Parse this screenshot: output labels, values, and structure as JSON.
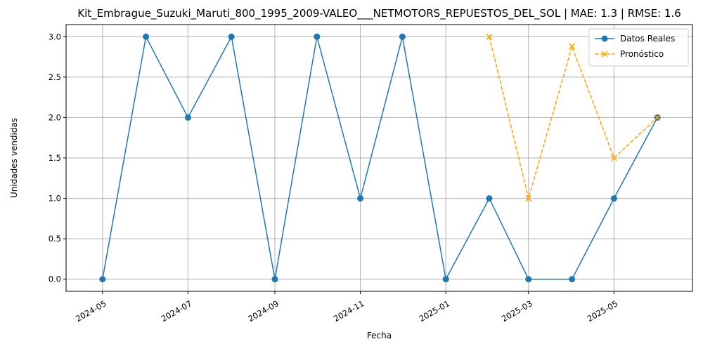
{
  "chart_data": {
    "type": "line",
    "title": "Kit_Embrague_Suzuki_Maruti_800_1995_2009-VALEO___NETMOTORS_REPUESTOS_DEL_SOL | MAE: 1.3 | RMSE: 1.6",
    "xlabel": "Fecha",
    "ylabel": "Unidades vendidas",
    "xlim": [
      "2024-04-05",
      "2025-06-26"
    ],
    "ylim": [
      -0.15,
      3.15
    ],
    "x_ticks": [
      "2024-05",
      "2024-07",
      "2024-09",
      "2024-11",
      "2025-01",
      "2025-03",
      "2025-05"
    ],
    "y_ticks": [
      "0.0",
      "0.5",
      "1.0",
      "1.5",
      "2.0",
      "2.5",
      "3.0"
    ],
    "grid": true,
    "legend_position": "top-right",
    "series": [
      {
        "name": "Datos Reales",
        "color": "#1f77b4",
        "marker": "circle",
        "line_style": "solid",
        "points": [
          {
            "x": "2024-05-01",
            "y": 0
          },
          {
            "x": "2024-06-01",
            "y": 3
          },
          {
            "x": "2024-07-01",
            "y": 2
          },
          {
            "x": "2024-08-01",
            "y": 3
          },
          {
            "x": "2024-09-01",
            "y": 0
          },
          {
            "x": "2024-10-01",
            "y": 3
          },
          {
            "x": "2024-11-01",
            "y": 1
          },
          {
            "x": "2024-12-01",
            "y": 3
          },
          {
            "x": "2025-01-01",
            "y": 0
          },
          {
            "x": "2025-02-01",
            "y": 1
          },
          {
            "x": "2025-03-01",
            "y": 0
          },
          {
            "x": "2025-04-01",
            "y": 0
          },
          {
            "x": "2025-05-01",
            "y": 1
          },
          {
            "x": "2025-06-01",
            "y": 2
          }
        ]
      },
      {
        "name": "Pronóstico",
        "color": "#ffa500",
        "marker": "x",
        "line_style": "dashed",
        "points": [
          {
            "x": "2025-02-01",
            "y": 3.0
          },
          {
            "x": "2025-03-01",
            "y": 1.0
          },
          {
            "x": "2025-04-01",
            "y": 2.88
          },
          {
            "x": "2025-05-01",
            "y": 1.5
          },
          {
            "x": "2025-06-01",
            "y": 2.0
          }
        ]
      }
    ]
  }
}
